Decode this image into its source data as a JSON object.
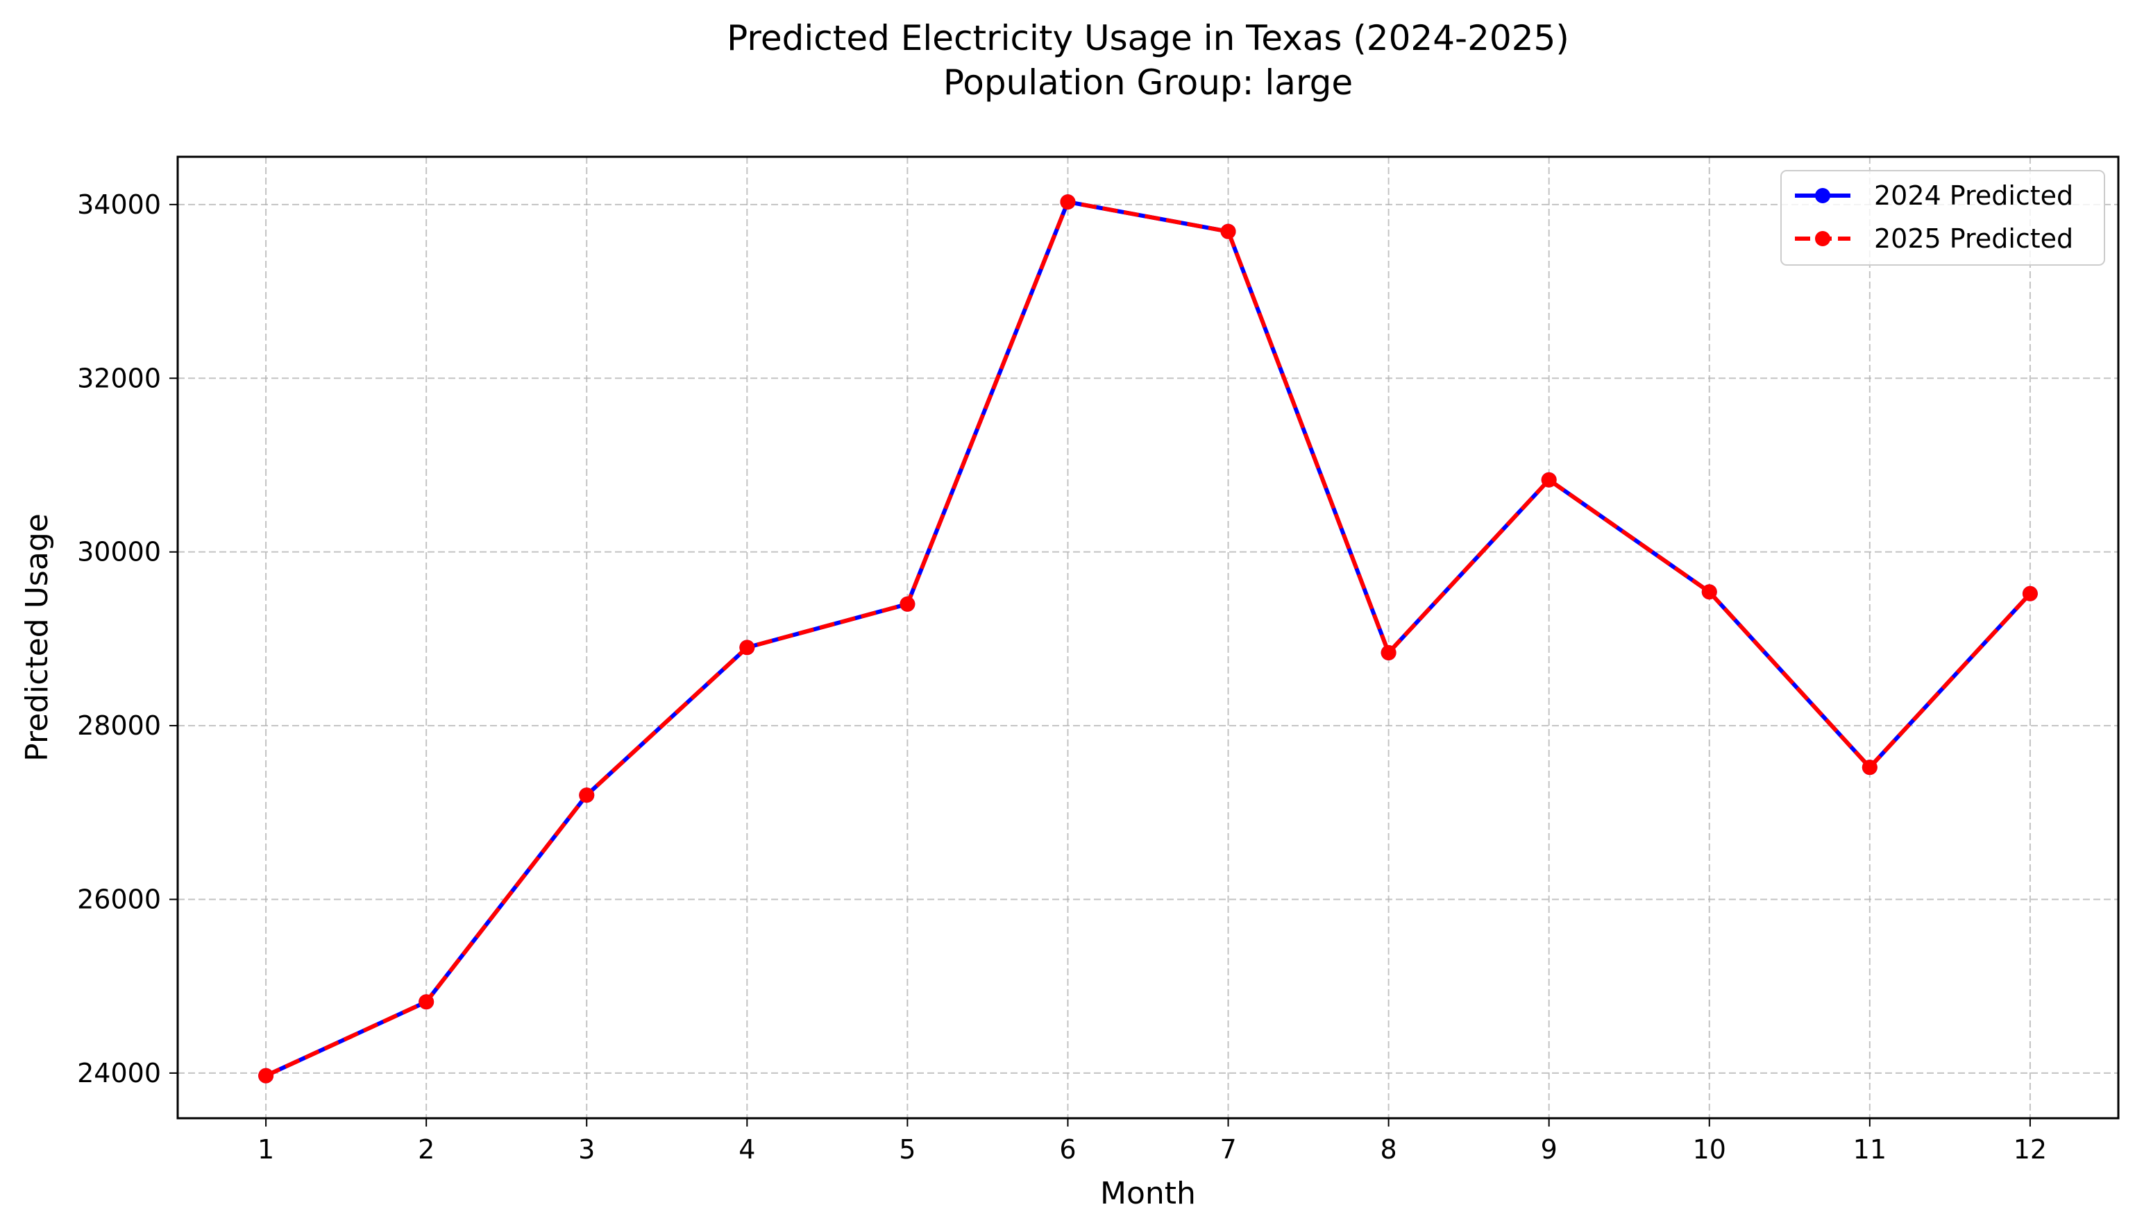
{
  "chart_data": {
    "type": "line",
    "title": "Predicted Electricity Usage in Texas (2024-2025)",
    "subtitle": "Population Group: large",
    "xlabel": "Month",
    "ylabel": "Predicted Usage",
    "x": [
      1,
      2,
      3,
      4,
      5,
      6,
      7,
      8,
      9,
      10,
      11,
      12
    ],
    "xticks": [
      "1",
      "2",
      "3",
      "4",
      "5",
      "6",
      "7",
      "8",
      "9",
      "10",
      "11",
      "12"
    ],
    "yticks": [
      "24000",
      "26000",
      "28000",
      "30000",
      "32000",
      "34000"
    ],
    "xlim": [
      0.45,
      12.55
    ],
    "ylim": [
      23480,
      34550
    ],
    "grid": true,
    "legend_position": "top-right",
    "series": [
      {
        "name": "2024 Predicted",
        "color": "#0000ff",
        "linestyle": "solid",
        "marker": "circle",
        "values": [
          23970,
          24820,
          27200,
          28900,
          29400,
          34030,
          33690,
          28840,
          30830,
          29540,
          27520,
          29520
        ]
      },
      {
        "name": "2025 Predicted",
        "color": "#ff0000",
        "linestyle": "dashed",
        "marker": "circle",
        "values": [
          23970,
          24820,
          27200,
          28900,
          29400,
          34030,
          33690,
          28840,
          30830,
          29540,
          27520,
          29520
        ]
      }
    ]
  }
}
